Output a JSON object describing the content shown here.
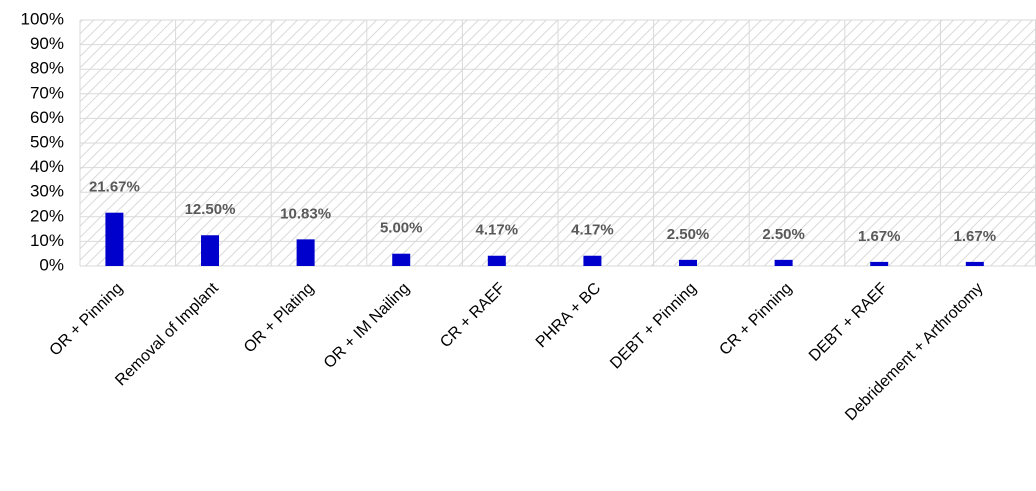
{
  "chart_data": {
    "type": "bar",
    "categories": [
      "OR + Pinning",
      "Removal of Implant",
      "OR + Plating",
      "OR + IM Nailing",
      "CR + RAEF",
      "PHRA + BC",
      "DEBT + Pinning",
      "CR + Pinning",
      "DEBT + RAEF",
      "Debridement + Arthrotomy"
    ],
    "values": [
      21.67,
      12.5,
      10.83,
      5,
      4.17,
      4.17,
      2.5,
      2.5,
      1.67,
      1.67
    ],
    "value_labels": [
      "21.67%",
      "12.50%",
      "10.83%",
      "5.00%",
      "4.17%",
      "4.17%",
      "2.50%",
      "2.50%",
      "1.67%",
      "1.67%"
    ],
    "color": "#0000cc",
    "ylim": [
      0,
      100
    ],
    "yticks": [
      {
        "value": 0,
        "label": "0%"
      },
      {
        "value": 10,
        "label": "10%"
      },
      {
        "value": 20,
        "label": "20%"
      },
      {
        "value": 30,
        "label": "30%"
      },
      {
        "value": 40,
        "label": "40%"
      },
      {
        "value": 50,
        "label": "50%"
      },
      {
        "value": 60,
        "label": "60%"
      },
      {
        "value": 70,
        "label": "70%"
      },
      {
        "value": 80,
        "label": "80%"
      },
      {
        "value": 90,
        "label": "90%"
      },
      {
        "value": 100,
        "label": "100%"
      }
    ],
    "grid": true
  }
}
